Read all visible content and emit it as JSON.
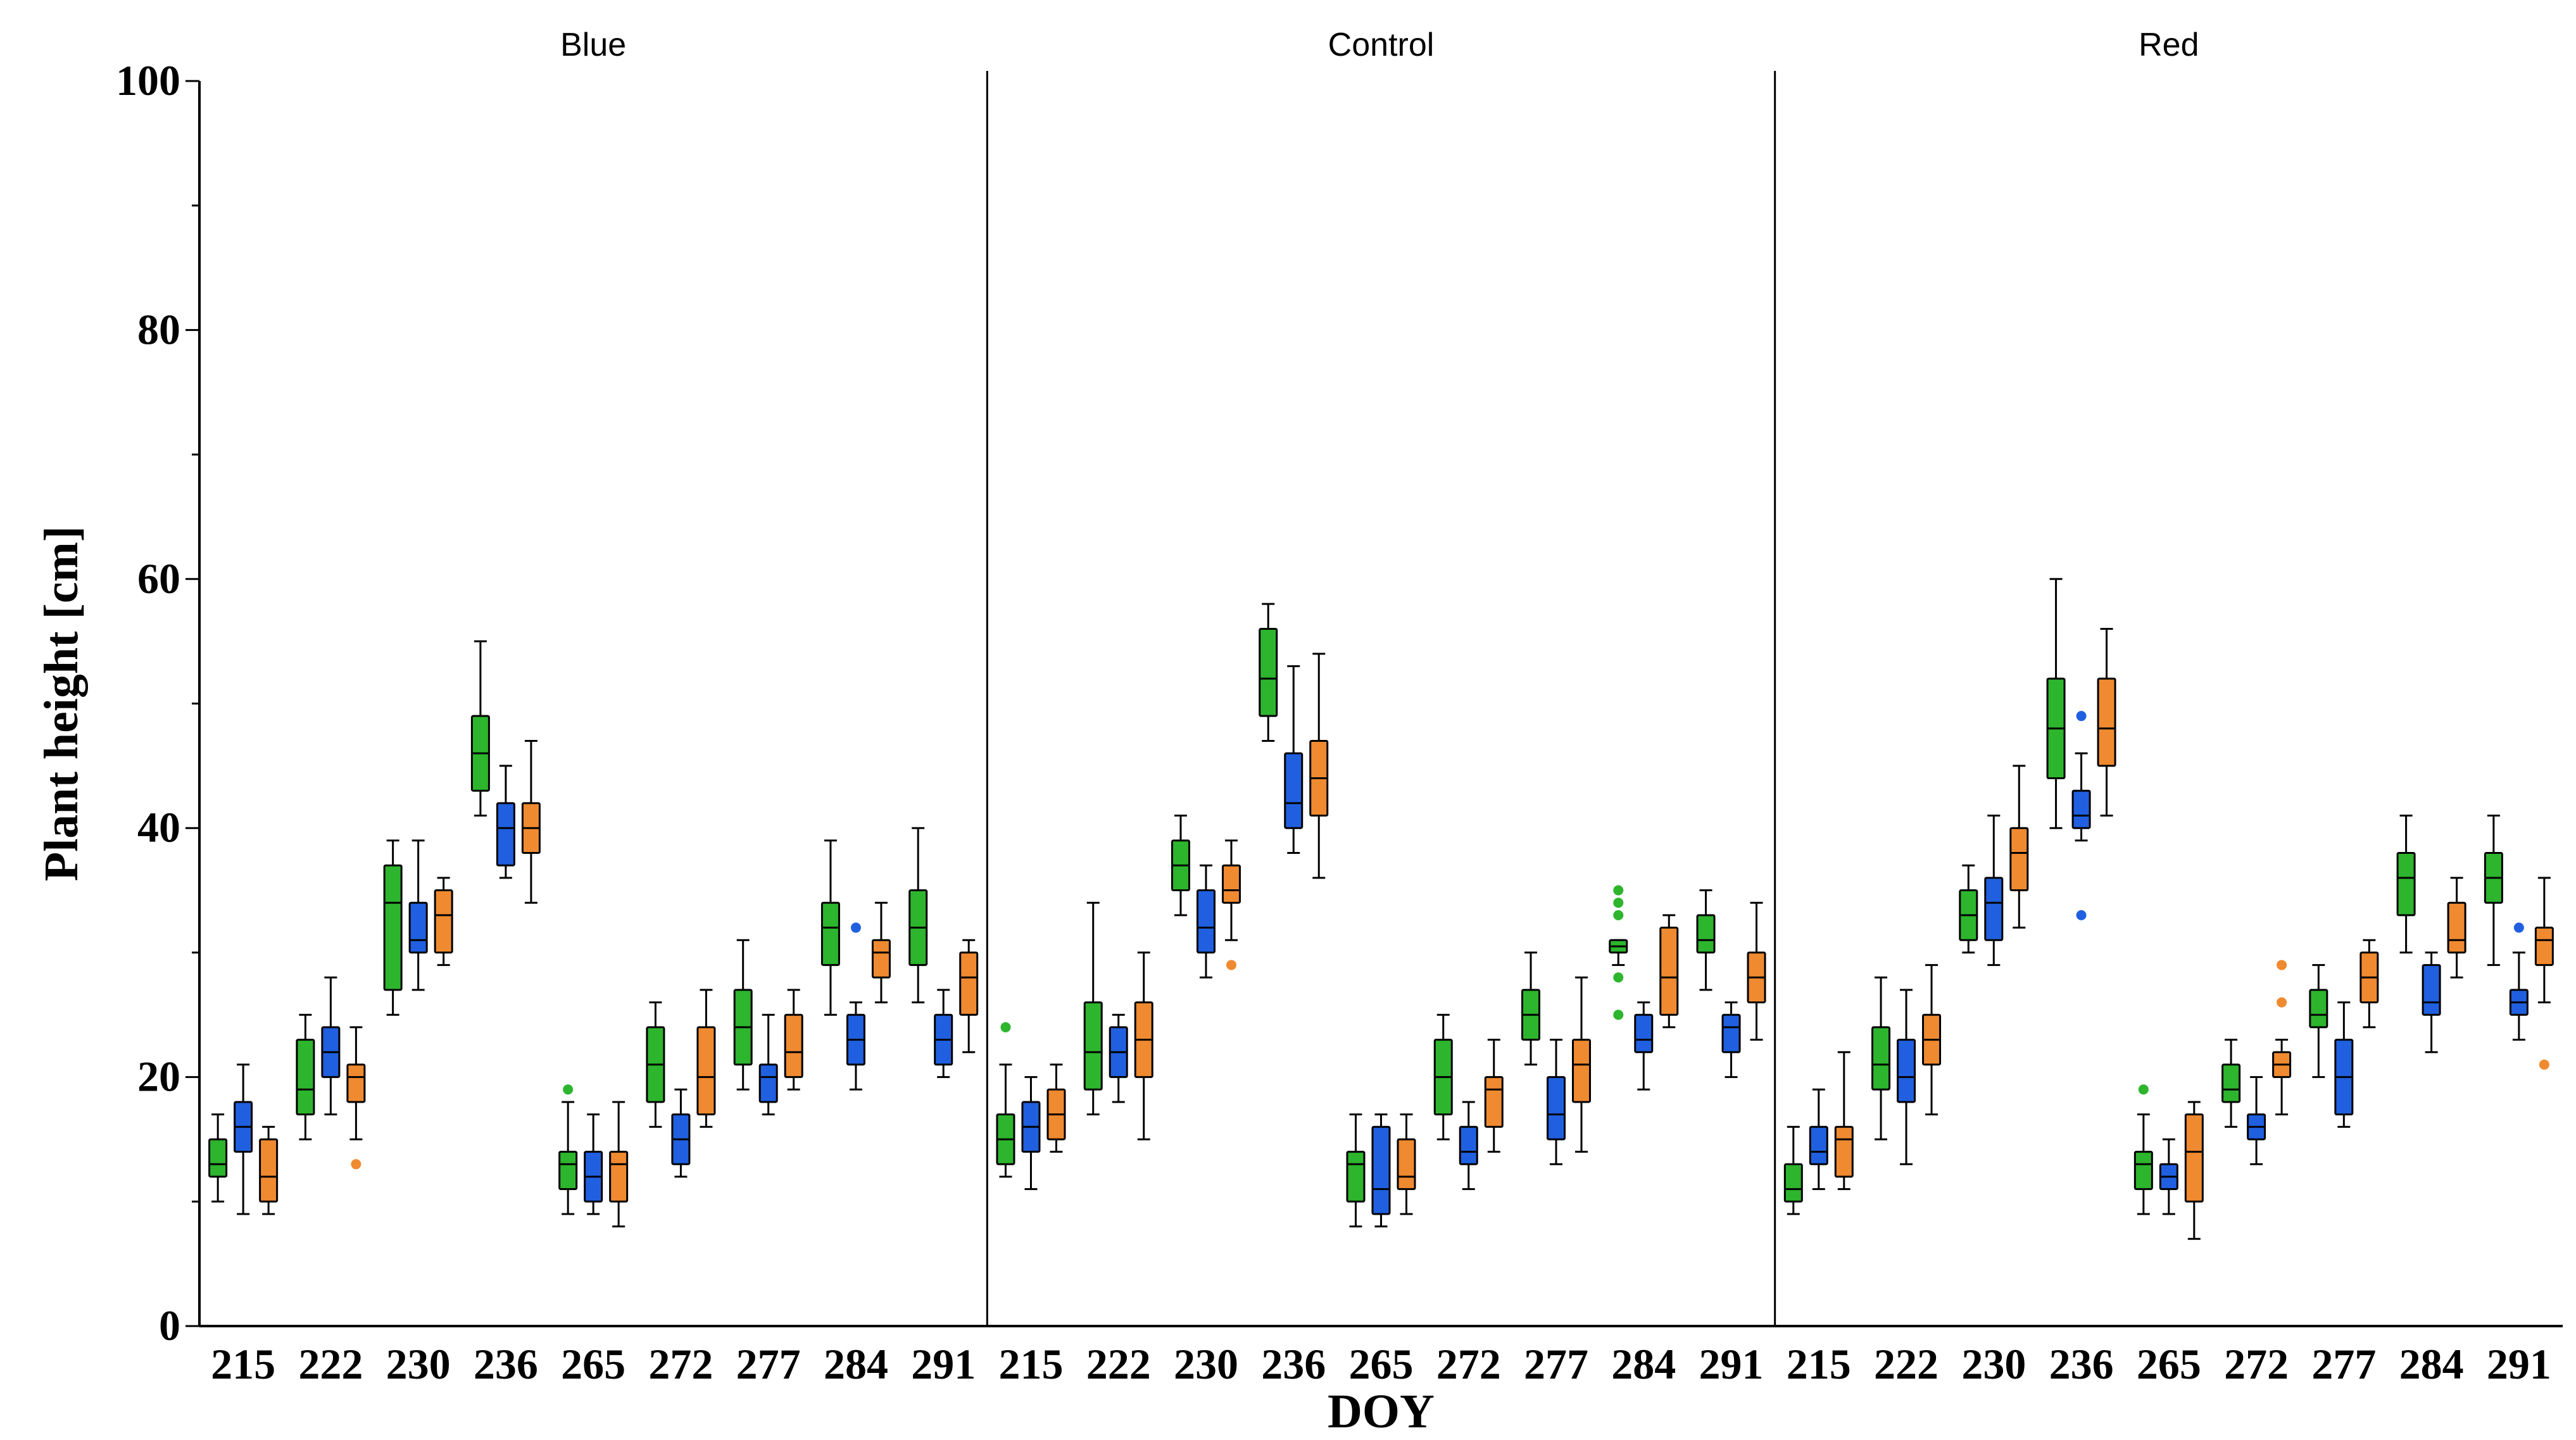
{
  "chart_data": {
    "type": "box",
    "xlabel": "DOY",
    "ylabel": "Plant height [cm]",
    "ylim": [
      0,
      100
    ],
    "yticks": [
      0,
      20,
      40,
      60,
      80,
      100
    ],
    "grid": false,
    "legend": "none",
    "categories": [
      "215",
      "222",
      "230",
      "236",
      "265",
      "272",
      "277",
      "284",
      "291"
    ],
    "series_colors": [
      "#2db52d",
      "#2060e0",
      "#f08a30"
    ],
    "panels": [
      {
        "title": "Blue",
        "groups": [
          [
            {
              "lo": 10,
              "q1": 12,
              "med": 13,
              "q3": 15,
              "hi": 17,
              "out": []
            },
            {
              "lo": 9,
              "q1": 14,
              "med": 16,
              "q3": 18,
              "hi": 21,
              "out": []
            },
            {
              "lo": 9,
              "q1": 10,
              "med": 12,
              "q3": 15,
              "hi": 16,
              "out": []
            }
          ],
          [
            {
              "lo": 15,
              "q1": 17,
              "med": 19,
              "q3": 23,
              "hi": 25,
              "out": []
            },
            {
              "lo": 17,
              "q1": 20,
              "med": 22,
              "q3": 24,
              "hi": 28,
              "out": []
            },
            {
              "lo": 15,
              "q1": 18,
              "med": 20,
              "q3": 21,
              "hi": 24,
              "out": [
                13
              ]
            }
          ],
          [
            {
              "lo": 25,
              "q1": 27,
              "med": 34,
              "q3": 37,
              "hi": 39,
              "out": []
            },
            {
              "lo": 27,
              "q1": 30,
              "med": 31,
              "q3": 34,
              "hi": 39,
              "out": []
            },
            {
              "lo": 29,
              "q1": 30,
              "med": 33,
              "q3": 35,
              "hi": 36,
              "out": []
            }
          ],
          [
            {
              "lo": 41,
              "q1": 43,
              "med": 46,
              "q3": 49,
              "hi": 55,
              "out": []
            },
            {
              "lo": 36,
              "q1": 37,
              "med": 40,
              "q3": 42,
              "hi": 45,
              "out": []
            },
            {
              "lo": 34,
              "q1": 38,
              "med": 40,
              "q3": 42,
              "hi": 47,
              "out": []
            }
          ],
          [
            {
              "lo": 9,
              "q1": 11,
              "med": 13,
              "q3": 14,
              "hi": 18,
              "out": [
                19
              ]
            },
            {
              "lo": 9,
              "q1": 10,
              "med": 12,
              "q3": 14,
              "hi": 17,
              "out": []
            },
            {
              "lo": 8,
              "q1": 10,
              "med": 13,
              "q3": 14,
              "hi": 18,
              "out": []
            }
          ],
          [
            {
              "lo": 16,
              "q1": 18,
              "med": 21,
              "q3": 24,
              "hi": 26,
              "out": []
            },
            {
              "lo": 12,
              "q1": 13,
              "med": 15,
              "q3": 17,
              "hi": 19,
              "out": []
            },
            {
              "lo": 16,
              "q1": 17,
              "med": 20,
              "q3": 24,
              "hi": 27,
              "out": []
            }
          ],
          [
            {
              "lo": 19,
              "q1": 21,
              "med": 24,
              "q3": 27,
              "hi": 31,
              "out": []
            },
            {
              "lo": 17,
              "q1": 18,
              "med": 20,
              "q3": 21,
              "hi": 25,
              "out": []
            },
            {
              "lo": 19,
              "q1": 20,
              "med": 22,
              "q3": 25,
              "hi": 27,
              "out": []
            }
          ],
          [
            {
              "lo": 25,
              "q1": 29,
              "med": 32,
              "q3": 34,
              "hi": 39,
              "out": []
            },
            {
              "lo": 19,
              "q1": 21,
              "med": 23,
              "q3": 25,
              "hi": 26,
              "out": [
                32
              ]
            },
            {
              "lo": 26,
              "q1": 28,
              "med": 30,
              "q3": 31,
              "hi": 34,
              "out": []
            }
          ],
          [
            {
              "lo": 26,
              "q1": 29,
              "med": 32,
              "q3": 35,
              "hi": 40,
              "out": []
            },
            {
              "lo": 20,
              "q1": 21,
              "med": 23,
              "q3": 25,
              "hi": 27,
              "out": []
            },
            {
              "lo": 22,
              "q1": 25,
              "med": 28,
              "q3": 30,
              "hi": 31,
              "out": []
            }
          ]
        ]
      },
      {
        "title": "Control",
        "groups": [
          [
            {
              "lo": 12,
              "q1": 13,
              "med": 15,
              "q3": 17,
              "hi": 21,
              "out": [
                24
              ]
            },
            {
              "lo": 11,
              "q1": 14,
              "med": 16,
              "q3": 18,
              "hi": 20,
              "out": []
            },
            {
              "lo": 14,
              "q1": 15,
              "med": 17,
              "q3": 19,
              "hi": 21,
              "out": []
            }
          ],
          [
            {
              "lo": 17,
              "q1": 19,
              "med": 22,
              "q3": 26,
              "hi": 34,
              "out": []
            },
            {
              "lo": 18,
              "q1": 20,
              "med": 22,
              "q3": 24,
              "hi": 25,
              "out": []
            },
            {
              "lo": 15,
              "q1": 20,
              "med": 23,
              "q3": 26,
              "hi": 30,
              "out": []
            }
          ],
          [
            {
              "lo": 33,
              "q1": 35,
              "med": 37,
              "q3": 39,
              "hi": 41,
              "out": []
            },
            {
              "lo": 28,
              "q1": 30,
              "med": 32,
              "q3": 35,
              "hi": 37,
              "out": []
            },
            {
              "lo": 31,
              "q1": 34,
              "med": 35,
              "q3": 37,
              "hi": 39,
              "out": [
                29
              ]
            }
          ],
          [
            {
              "lo": 47,
              "q1": 49,
              "med": 52,
              "q3": 56,
              "hi": 58,
              "out": []
            },
            {
              "lo": 38,
              "q1": 40,
              "med": 42,
              "q3": 46,
              "hi": 53,
              "out": []
            },
            {
              "lo": 36,
              "q1": 41,
              "med": 44,
              "q3": 47,
              "hi": 54,
              "out": []
            }
          ],
          [
            {
              "lo": 8,
              "q1": 10,
              "med": 13,
              "q3": 14,
              "hi": 17,
              "out": []
            },
            {
              "lo": 8,
              "q1": 9,
              "med": 11,
              "q3": 16,
              "hi": 17,
              "out": []
            },
            {
              "lo": 9,
              "q1": 11,
              "med": 12,
              "q3": 15,
              "hi": 17,
              "out": []
            }
          ],
          [
            {
              "lo": 15,
              "q1": 17,
              "med": 20,
              "q3": 23,
              "hi": 25,
              "out": []
            },
            {
              "lo": 11,
              "q1": 13,
              "med": 14,
              "q3": 16,
              "hi": 18,
              "out": []
            },
            {
              "lo": 14,
              "q1": 16,
              "med": 19,
              "q3": 20,
              "hi": 23,
              "out": []
            }
          ],
          [
            {
              "lo": 21,
              "q1": 23,
              "med": 25,
              "q3": 27,
              "hi": 30,
              "out": []
            },
            {
              "lo": 13,
              "q1": 15,
              "med": 17,
              "q3": 20,
              "hi": 23,
              "out": []
            },
            {
              "lo": 14,
              "q1": 18,
              "med": 21,
              "q3": 23,
              "hi": 28,
              "out": []
            }
          ],
          [
            {
              "lo": 29,
              "q1": 30,
              "med": 30.5,
              "q3": 31,
              "hi": 31,
              "out": [
                25,
                28,
                33,
                34,
                35
              ]
            },
            {
              "lo": 19,
              "q1": 22,
              "med": 23,
              "q3": 25,
              "hi": 26,
              "out": []
            },
            {
              "lo": 24,
              "q1": 25,
              "med": 28,
              "q3": 32,
              "hi": 33,
              "out": []
            }
          ],
          [
            {
              "lo": 27,
              "q1": 30,
              "med": 31,
              "q3": 33,
              "hi": 35,
              "out": []
            },
            {
              "lo": 20,
              "q1": 22,
              "med": 24,
              "q3": 25,
              "hi": 26,
              "out": []
            },
            {
              "lo": 23,
              "q1": 26,
              "med": 28,
              "q3": 30,
              "hi": 34,
              "out": []
            }
          ]
        ]
      },
      {
        "title": "Red",
        "groups": [
          [
            {
              "lo": 9,
              "q1": 10,
              "med": 11,
              "q3": 13,
              "hi": 16,
              "out": []
            },
            {
              "lo": 11,
              "q1": 13,
              "med": 14,
              "q3": 16,
              "hi": 19,
              "out": []
            },
            {
              "lo": 11,
              "q1": 12,
              "med": 15,
              "q3": 16,
              "hi": 22,
              "out": []
            }
          ],
          [
            {
              "lo": 15,
              "q1": 19,
              "med": 21,
              "q3": 24,
              "hi": 28,
              "out": []
            },
            {
              "lo": 13,
              "q1": 18,
              "med": 20,
              "q3": 23,
              "hi": 27,
              "out": []
            },
            {
              "lo": 17,
              "q1": 21,
              "med": 23,
              "q3": 25,
              "hi": 29,
              "out": []
            }
          ],
          [
            {
              "lo": 30,
              "q1": 31,
              "med": 33,
              "q3": 35,
              "hi": 37,
              "out": []
            },
            {
              "lo": 29,
              "q1": 31,
              "med": 34,
              "q3": 36,
              "hi": 41,
              "out": []
            },
            {
              "lo": 32,
              "q1": 35,
              "med": 38,
              "q3": 40,
              "hi": 45,
              "out": []
            }
          ],
          [
            {
              "lo": 40,
              "q1": 44,
              "med": 48,
              "q3": 52,
              "hi": 60,
              "out": []
            },
            {
              "lo": 39,
              "q1": 40,
              "med": 41,
              "q3": 43,
              "hi": 46,
              "out": [
                33,
                49
              ]
            },
            {
              "lo": 41,
              "q1": 45,
              "med": 48,
              "q3": 52,
              "hi": 56,
              "out": []
            }
          ],
          [
            {
              "lo": 9,
              "q1": 11,
              "med": 13,
              "q3": 14,
              "hi": 17,
              "out": [
                19
              ]
            },
            {
              "lo": 9,
              "q1": 11,
              "med": 12,
              "q3": 13,
              "hi": 15,
              "out": []
            },
            {
              "lo": 7,
              "q1": 10,
              "med": 14,
              "q3": 17,
              "hi": 18,
              "out": []
            }
          ],
          [
            {
              "lo": 16,
              "q1": 18,
              "med": 19,
              "q3": 21,
              "hi": 23,
              "out": []
            },
            {
              "lo": 13,
              "q1": 15,
              "med": 16,
              "q3": 17,
              "hi": 20,
              "out": []
            },
            {
              "lo": 17,
              "q1": 20,
              "med": 21,
              "q3": 22,
              "hi": 23,
              "out": [
                26,
                29
              ]
            }
          ],
          [
            {
              "lo": 20,
              "q1": 24,
              "med": 25,
              "q3": 27,
              "hi": 29,
              "out": []
            },
            {
              "lo": 16,
              "q1": 17,
              "med": 20,
              "q3": 23,
              "hi": 26,
              "out": []
            },
            {
              "lo": 24,
              "q1": 26,
              "med": 28,
              "q3": 30,
              "hi": 31,
              "out": []
            }
          ],
          [
            {
              "lo": 30,
              "q1": 33,
              "med": 36,
              "q3": 38,
              "hi": 41,
              "out": []
            },
            {
              "lo": 22,
              "q1": 25,
              "med": 26,
              "q3": 29,
              "hi": 30,
              "out": []
            },
            {
              "lo": 28,
              "q1": 30,
              "med": 31,
              "q3": 34,
              "hi": 36,
              "out": []
            }
          ],
          [
            {
              "lo": 29,
              "q1": 34,
              "med": 36,
              "q3": 38,
              "hi": 41,
              "out": []
            },
            {
              "lo": 23,
              "q1": 25,
              "med": 26,
              "q3": 27,
              "hi": 30,
              "out": [
                32
              ]
            },
            {
              "lo": 26,
              "q1": 29,
              "med": 31,
              "q3": 32,
              "hi": 36,
              "out": [
                21
              ]
            }
          ]
        ]
      }
    ]
  }
}
